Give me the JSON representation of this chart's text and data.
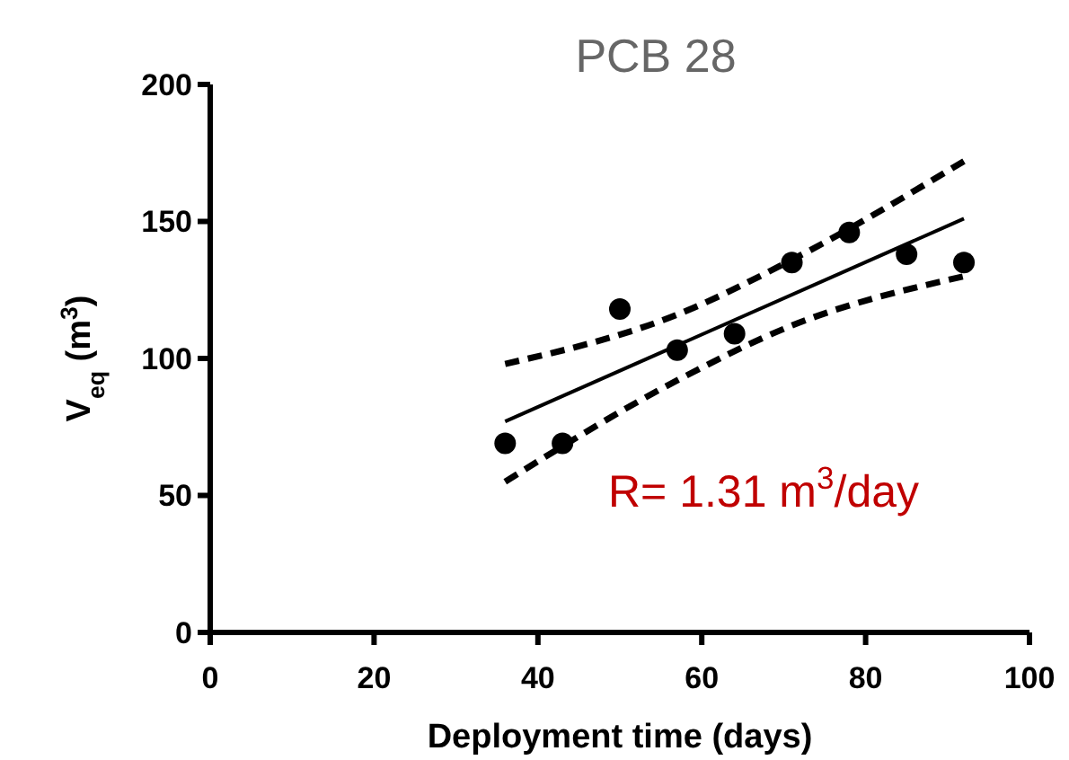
{
  "chart_data": {
    "type": "scatter",
    "title": "PCB 28",
    "xlabel": "Deployment time (days)",
    "ylabel": "V$_{eq}$ (m$^{3}$)",
    "xlim": [
      0,
      100
    ],
    "xticks": [
      0,
      20,
      40,
      60,
      80,
      100
    ],
    "ylim": [
      0,
      200
    ],
    "yticks": [
      0,
      50,
      100,
      150,
      200
    ],
    "grid": false,
    "annotations": [
      "R= 1.31 m$^{3}$/day"
    ],
    "series": [
      {
        "color": "#000000",
        "marker": "circle",
        "x": [
          36,
          43,
          50,
          57,
          64,
          71,
          78,
          85,
          92
        ],
        "values": [
          69,
          69,
          118,
          103,
          109,
          135,
          146,
          138,
          135
        ]
      },
      {
        "type": "line",
        "color": "#000000",
        "line_style": "solid",
        "x": [
          36,
          92
        ],
        "values": [
          77,
          151
        ]
      },
      {
        "type": "line",
        "color": "#000000",
        "line_style": "dashed",
        "x": [
          36,
          57,
          71,
          92
        ],
        "values": [
          98,
          116,
          136,
          172
        ]
      },
      {
        "type": "line",
        "color": "#000000",
        "line_style": "dashed",
        "x": [
          36,
          57,
          71,
          92
        ],
        "values": [
          55,
          92,
          112,
          130
        ]
      }
    ]
  }
}
